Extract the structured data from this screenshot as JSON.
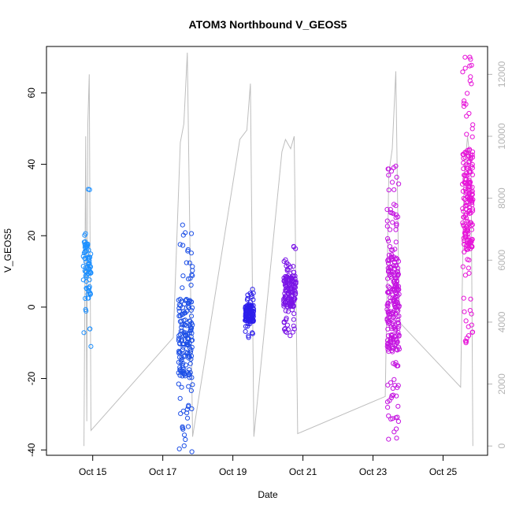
{
  "chart_data": {
    "type": "scatter",
    "title": "ATOM3 Northbound V_GEOS5",
    "xlabel": "Date",
    "ylabel": "V_GEOS5",
    "x_ticks": [
      "Oct 15",
      "Oct 17",
      "Oct 19",
      "Oct 21",
      "Oct 23",
      "Oct 25"
    ],
    "x_tick_days": [
      15,
      17,
      19,
      21,
      23,
      25
    ],
    "xlim_days": [
      13.68,
      26.27
    ],
    "ylim": [
      -41.5,
      73
    ],
    "y_ticks": [
      -40,
      -20,
      0,
      20,
      40,
      60
    ],
    "y2lim": [
      -300,
      12900
    ],
    "y2_ticks": [
      0,
      2000,
      4000,
      6000,
      8000,
      10000,
      12000
    ],
    "grid": false,
    "colors": {
      "clusters": [
        "#1E90FF",
        "#1E50E6",
        "#2D1EEB",
        "#7A14E6",
        "#C414E0",
        "#E614D8"
      ],
      "altitude_line": "#bebebe",
      "axis": "#000000",
      "right_axis": "#b4b4b4"
    },
    "scatter_clusters": [
      {
        "color_index": 0,
        "x_start": 14.73,
        "x_end": 14.95,
        "y_min": -11,
        "y_max": 33,
        "n": 80
      },
      {
        "color_index": 1,
        "x_start": 17.45,
        "x_end": 17.85,
        "y_min": -40.5,
        "y_max": 23,
        "n": 190
      },
      {
        "color_index": 2,
        "x_start": 19.35,
        "x_end": 19.6,
        "y_min": -8.5,
        "y_max": 5,
        "n": 110
      },
      {
        "color_index": 3,
        "x_start": 20.45,
        "x_end": 20.8,
        "y_min": -8,
        "y_max": 17,
        "n": 150
      },
      {
        "color_index": 4,
        "x_start": 23.4,
        "x_end": 23.75,
        "y_min": -37,
        "y_max": 39.5,
        "n": 260
      },
      {
        "color_index": 5,
        "x_start": 25.55,
        "x_end": 25.85,
        "y_min": -10,
        "y_max": 70,
        "n": 200
      }
    ],
    "altitude_series": [
      {
        "x": 14.75,
        "y": 0
      },
      {
        "x": 14.8,
        "y": 10000
      },
      {
        "x": 14.83,
        "y": 800
      },
      {
        "x": 14.86,
        "y": 10400
      },
      {
        "x": 14.9,
        "y": 12000
      },
      {
        "x": 14.95,
        "y": 500
      },
      {
        "x": 17.3,
        "y": 3500
      },
      {
        "x": 17.5,
        "y": 9800
      },
      {
        "x": 17.6,
        "y": 10400
      },
      {
        "x": 17.7,
        "y": 12700
      },
      {
        "x": 17.85,
        "y": 300
      },
      {
        "x": 19.2,
        "y": 9900
      },
      {
        "x": 19.4,
        "y": 10200
      },
      {
        "x": 19.5,
        "y": 11700
      },
      {
        "x": 19.6,
        "y": 300
      },
      {
        "x": 20.4,
        "y": 9500
      },
      {
        "x": 20.5,
        "y": 9900
      },
      {
        "x": 20.65,
        "y": 9600
      },
      {
        "x": 20.75,
        "y": 10000
      },
      {
        "x": 20.85,
        "y": 400
      },
      {
        "x": 23.35,
        "y": 1600
      },
      {
        "x": 23.45,
        "y": 8800
      },
      {
        "x": 23.55,
        "y": 9600
      },
      {
        "x": 23.65,
        "y": 12100
      },
      {
        "x": 23.75,
        "y": 4000
      },
      {
        "x": 25.5,
        "y": 1900
      },
      {
        "x": 25.6,
        "y": 8800
      },
      {
        "x": 25.7,
        "y": 10000
      },
      {
        "x": 25.8,
        "y": 8900
      },
      {
        "x": 25.85,
        "y": 0
      }
    ]
  }
}
